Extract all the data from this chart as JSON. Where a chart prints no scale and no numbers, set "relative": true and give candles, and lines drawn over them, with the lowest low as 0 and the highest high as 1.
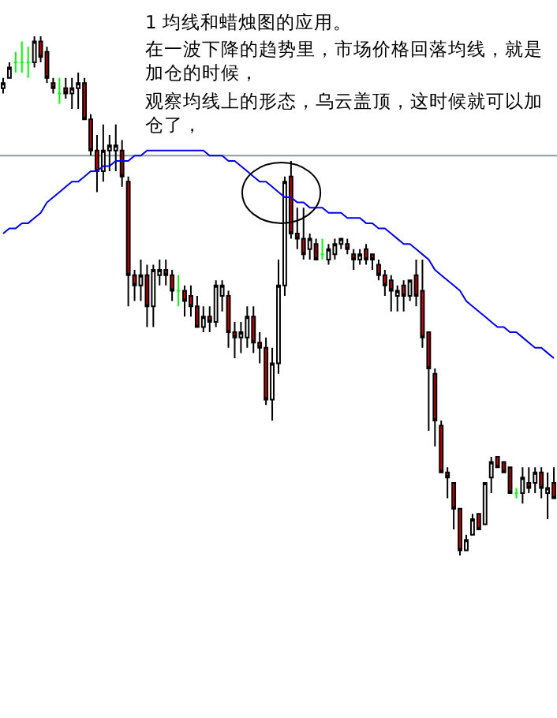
{
  "chart_data": {
    "type": "candlestick",
    "relative": true,
    "title": "1 均线和蜡烛图的应用。",
    "annotations": [
      "在一波下降的趋势里，市场价格回落均线，就是加仓的时候，",
      "观察均线上的形态，乌云盖顶，这时候就可以加仓了，"
    ],
    "categories": [
      null,
      null,
      null,
      null,
      null,
      null,
      null,
      null,
      null,
      null,
      null,
      null,
      null,
      null,
      null,
      null,
      null,
      null,
      null,
      null,
      null,
      null,
      null,
      null,
      null,
      null,
      null,
      null,
      null,
      null,
      null,
      null,
      null,
      null,
      null,
      null,
      null,
      null,
      null,
      null,
      null,
      null,
      null,
      null,
      null,
      null,
      null,
      null,
      null,
      null,
      null,
      null,
      null,
      null,
      null,
      null,
      null,
      null,
      null,
      null,
      null,
      null,
      null,
      null,
      null,
      null,
      null,
      null,
      null,
      null,
      null,
      null,
      null,
      null,
      null,
      null,
      null,
      null,
      null,
      null,
      null,
      null,
      null,
      null,
      null,
      null,
      null,
      null,
      null
    ],
    "ohlc": [
      [
        0.9,
        0.92,
        0.89,
        0.91
      ],
      [
        0.92,
        0.95,
        0.92,
        0.94
      ],
      [
        0.95,
        0.97,
        0.93,
        0.95
      ],
      [
        0.95,
        0.99,
        0.93,
        0.95
      ],
      [
        0.95,
        0.98,
        0.92,
        0.95
      ],
      [
        0.95,
        1,
        0.94,
        0.99
      ],
      [
        0.99,
        1,
        0.95,
        0.96
      ],
      [
        0.97,
        0.98,
        0.91,
        0.92
      ],
      [
        0.91,
        0.92,
        0.89,
        0.9
      ],
      [
        0.89,
        0.92,
        0.87,
        0.89
      ],
      [
        0.9,
        0.92,
        0.88,
        0.89
      ],
      [
        0.89,
        0.92,
        0.86,
        0.9
      ],
      [
        0.9,
        0.93,
        0.86,
        0.91
      ],
      [
        0.91,
        0.92,
        0.84,
        0.84
      ],
      [
        0.84,
        0.85,
        0.77,
        0.78
      ],
      [
        0.78,
        0.81,
        0.7,
        0.74
      ],
      [
        0.74,
        0.83,
        0.72,
        0.78
      ],
      [
        0.78,
        0.81,
        0.74,
        0.79
      ],
      [
        0.78,
        0.83,
        0.74,
        0.79
      ],
      [
        0.78,
        0.8,
        0.71,
        0.73
      ],
      [
        0.72,
        0.73,
        0.48,
        0.54
      ],
      [
        0.54,
        0.55,
        0.49,
        0.52
      ],
      [
        0.52,
        0.57,
        0.49,
        0.54
      ],
      [
        0.54,
        0.56,
        0.44,
        0.48
      ],
      [
        0.48,
        0.56,
        0.44,
        0.55
      ],
      [
        0.54,
        0.57,
        0.52,
        0.55
      ],
      [
        0.55,
        0.57,
        0.52,
        0.54
      ],
      [
        0.54,
        0.55,
        0.49,
        0.51
      ],
      [
        0.51,
        0.54,
        0.48,
        0.51
      ],
      [
        0.51,
        0.52,
        0.46,
        0.49
      ],
      [
        0.5,
        0.52,
        0.46,
        0.48
      ],
      [
        0.48,
        0.5,
        0.44,
        0.44
      ],
      [
        0.44,
        0.48,
        0.43,
        0.46
      ],
      [
        0.46,
        0.48,
        0.43,
        0.45
      ],
      [
        0.45,
        0.53,
        0.44,
        0.52
      ],
      [
        0.5,
        0.53,
        0.47,
        0.52
      ],
      [
        0.5,
        0.51,
        0.4,
        0.43
      ],
      [
        0.43,
        0.45,
        0.38,
        0.42
      ],
      [
        0.42,
        0.45,
        0.39,
        0.43
      ],
      [
        0.42,
        0.48,
        0.4,
        0.46
      ],
      [
        0.46,
        0.48,
        0.39,
        0.41
      ],
      [
        0.41,
        0.43,
        0.37,
        0.4
      ],
      [
        0.4,
        0.42,
        0.29,
        0.3
      ],
      [
        0.3,
        0.4,
        0.26,
        0.37
      ],
      [
        0.37,
        0.57,
        0.35,
        0.52
      ],
      [
        0.52,
        0.73,
        0.5,
        0.72
      ],
      [
        0.73,
        0.76,
        0.61,
        0.62
      ],
      [
        0.62,
        0.67,
        0.59,
        0.61
      ],
      [
        0.61,
        0.67,
        0.57,
        0.58
      ],
      [
        0.59,
        0.62,
        0.57,
        0.61
      ],
      [
        0.6,
        0.61,
        0.57,
        0.57
      ],
      [
        0.58,
        0.61,
        0.57,
        0.58
      ],
      [
        0.57,
        0.6,
        0.56,
        0.59
      ],
      [
        0.58,
        0.61,
        0.57,
        0.6
      ],
      [
        0.6,
        0.61,
        0.59,
        0.61
      ],
      [
        0.6,
        0.61,
        0.58,
        0.59
      ],
      [
        0.58,
        0.59,
        0.55,
        0.57
      ],
      [
        0.57,
        0.59,
        0.56,
        0.58
      ],
      [
        0.59,
        0.6,
        0.56,
        0.57
      ],
      [
        0.58,
        0.58,
        0.55,
        0.57
      ],
      [
        0.56,
        0.57,
        0.53,
        0.54
      ],
      [
        0.54,
        0.55,
        0.5,
        0.52
      ],
      [
        0.53,
        0.54,
        0.47,
        0.51
      ],
      [
        0.5,
        0.52,
        0.47,
        0.51
      ],
      [
        0.52,
        0.53,
        0.47,
        0.5
      ],
      [
        0.5,
        0.53,
        0.49,
        0.53
      ],
      [
        0.54,
        0.57,
        0.48,
        0.5
      ],
      [
        0.51,
        0.57,
        0.4,
        0.42
      ],
      [
        0.43,
        0.43,
        0.24,
        0.36
      ],
      [
        0.35,
        0.36,
        0.21,
        0.26
      ],
      [
        0.25,
        0.26,
        0.16,
        0.16
      ],
      [
        0.16,
        0.17,
        0.11,
        0.15
      ],
      [
        0.14,
        0.14,
        0.05,
        0.09
      ],
      [
        0.09,
        0.09,
        0,
        0.01
      ],
      [
        0.01,
        0.04,
        0.01,
        0.03
      ],
      [
        0.04,
        0.08,
        0.04,
        0.07
      ],
      [
        0.08,
        0.08,
        0.05,
        0.05
      ],
      [
        0.06,
        0.14,
        0.06,
        0.14
      ],
      [
        0.15,
        0.19,
        0.12,
        0.18
      ],
      [
        0.19,
        0.19,
        0.17,
        0.17
      ],
      [
        0.18,
        0.18,
        0.16,
        0.16
      ],
      [
        0.17,
        0.17,
        0.12,
        0.12
      ],
      [
        0.12,
        0.13,
        0.11,
        0.12
      ],
      [
        0.12,
        0.17,
        0.1,
        0.15
      ],
      [
        0.14,
        0.17,
        0.12,
        0.13
      ],
      [
        0.14,
        0.17,
        0.12,
        0.16
      ],
      [
        0.16,
        0.17,
        0.11,
        0.13
      ],
      [
        0.12,
        0.16,
        0.07,
        0.13
      ],
      [
        0.14,
        0.17,
        0.11,
        0.11
      ]
    ],
    "colors": [
      "#ffffff",
      "#ffffff",
      "#00ff00",
      "#00ff00",
      "#00ff00",
      "#ffffff",
      "#cc0000",
      "#cc0000",
      "#cc0000",
      "#00ff00",
      "#cc0000",
      "#ffffff",
      "#ffffff",
      "#cc0000",
      "#cc0000",
      "#cc0000",
      "#ffffff",
      "#ffffff",
      "#ffffff",
      "#cc0000",
      "#cc0000",
      "#cc0000",
      "#ffffff",
      "#cc0000",
      "#ffffff",
      "#ffffff",
      "#cc0000",
      "#cc0000",
      "#00ff00",
      "#cc0000",
      "#cc0000",
      "#cc0000",
      "#ffffff",
      "#cc0000",
      "#ffffff",
      "#ffffff",
      "#cc0000",
      "#cc0000",
      "#ffffff",
      "#ffffff",
      "#cc0000",
      "#cc0000",
      "#cc0000",
      "#ffffff",
      "#ffffff",
      "#ffffff",
      "#cc0000",
      "#cc0000",
      "#cc0000",
      "#ffffff",
      "#cc0000",
      "#00ff00",
      "#ffffff",
      "#ffffff",
      "#ffffff",
      "#cc0000",
      "#cc0000",
      "#ffffff",
      "#cc0000",
      "#cc0000",
      "#cc0000",
      "#cc0000",
      "#cc0000",
      "#ffffff",
      "#cc0000",
      "#ffffff",
      "#cc0000",
      "#cc0000",
      "#cc0000",
      "#cc0000",
      "#cc0000",
      "#cc0000",
      "#cc0000",
      "#cc0000",
      "#ffffff",
      "#ffffff",
      "#cc0000",
      "#ffffff",
      "#ffffff",
      "#cc0000",
      "#cc0000",
      "#cc0000",
      "#00ff00",
      "#ffffff",
      "#cc0000",
      "#ffffff",
      "#cc0000",
      "#ffffff",
      "#cc0000"
    ],
    "series": [
      {
        "type": "line",
        "color": "#0000ee",
        "values": [
          0.62,
          0.63,
          0.63,
          0.64,
          0.64,
          0.65,
          0.66,
          0.68,
          0.69,
          0.7,
          0.71,
          0.72,
          0.72,
          0.73,
          0.74,
          0.74,
          0.75,
          0.75,
          0.76,
          0.76,
          0.76,
          0.77,
          0.77,
          0.78,
          0.78,
          0.78,
          0.78,
          0.78,
          0.78,
          0.78,
          0.78,
          0.78,
          0.78,
          0.77,
          0.77,
          0.77,
          0.76,
          0.76,
          0.75,
          0.74,
          0.73,
          0.72,
          0.72,
          0.71,
          0.7,
          0.69,
          0.69,
          0.68,
          0.68,
          0.67,
          0.67,
          0.67,
          0.66,
          0.66,
          0.66,
          0.65,
          0.65,
          0.65,
          0.64,
          0.64,
          0.63,
          0.63,
          0.62,
          0.61,
          0.6,
          0.6,
          0.59,
          0.58,
          0.57,
          0.55,
          0.54,
          0.53,
          0.52,
          0.51,
          0.49,
          0.48,
          0.47,
          0.46,
          0.45,
          0.44,
          0.44,
          0.43,
          0.43,
          0.42,
          0.41,
          0.4,
          0.4,
          0.39,
          0.38
        ]
      }
    ],
    "ref_lines": [
      {
        "axis": "y",
        "value": 0.77,
        "color": "#8c9aa8"
      }
    ]
  }
}
